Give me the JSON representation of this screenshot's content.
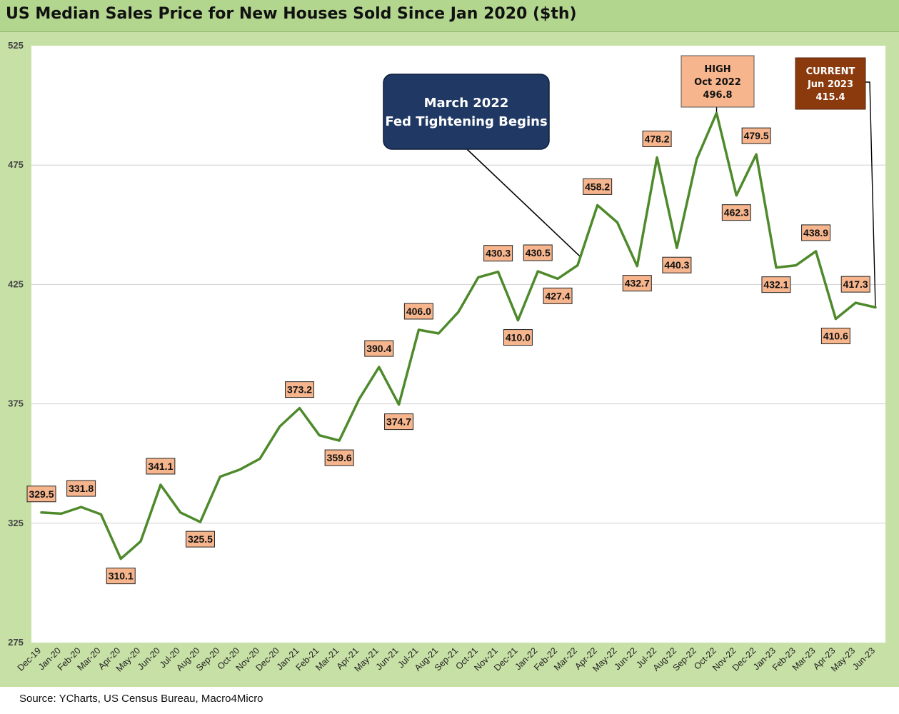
{
  "header": {
    "title": "US Median Sales Price for New Houses Sold Since Jan 2020 ($th)"
  },
  "footer": {
    "source": "Source: YCharts, US Census Bureau, Macro4Micro"
  },
  "colors": {
    "line": "#4e8a2b",
    "label_fill": "#f6b58d",
    "frame": "#c7e0a6",
    "callout_navy": "#1f3864",
    "callout_current": "#8b3a0e"
  },
  "chart_data": {
    "type": "line",
    "title": "US Median Sales Price for New Houses Sold Since Jan 2020 ($th)",
    "xlabel": "",
    "ylabel": "",
    "ylim": [
      275,
      525
    ],
    "yticks": [
      275,
      325,
      375,
      425,
      475,
      525
    ],
    "grid": true,
    "categories": [
      "Dec-19",
      "Jan-20",
      "Feb-20",
      "Mar-20",
      "Apr-20",
      "May-20",
      "Jun-20",
      "Jul-20",
      "Aug-20",
      "Sep-20",
      "Oct-20",
      "Nov-20",
      "Dec-20",
      "Jan-21",
      "Feb-21",
      "Mar-21",
      "Apr-21",
      "May-21",
      "Jun-21",
      "Jul-21",
      "Aug-21",
      "Sep-21",
      "Oct-21",
      "Nov-21",
      "Dec-21",
      "Jan-22",
      "Feb-22",
      "Mar-22",
      "Apr-22",
      "May-22",
      "Jun-22",
      "Jul-22",
      "Aug-22",
      "Sep-22",
      "Oct-22",
      "Nov-22",
      "Dec-22",
      "Jan-23",
      "Feb-23",
      "Mar-23",
      "Apr-23",
      "May-23",
      "Jun-23"
    ],
    "series": [
      {
        "values": [
          329.5,
          329.0,
          331.8,
          328.7,
          310.1,
          317.4,
          341.1,
          329.5,
          325.5,
          344.5,
          347.5,
          352.0,
          365.5,
          373.2,
          361.8,
          359.6,
          377.0,
          390.4,
          374.7,
          406.0,
          404.5,
          413.5,
          428.0,
          430.3,
          410.0,
          430.5,
          427.4,
          433.0,
          458.2,
          451.0,
          432.7,
          478.2,
          440.3,
          477.5,
          496.8,
          462.3,
          479.5,
          432.1,
          433.0,
          438.9,
          410.6,
          417.3,
          415.4
        ]
      }
    ],
    "data_labels": [
      {
        "index": 0,
        "text": "329.5",
        "pos": "above"
      },
      {
        "index": 2,
        "text": "331.8",
        "pos": "above"
      },
      {
        "index": 4,
        "text": "310.1",
        "pos": "below"
      },
      {
        "index": 6,
        "text": "341.1",
        "pos": "above"
      },
      {
        "index": 8,
        "text": "325.5",
        "pos": "below"
      },
      {
        "index": 13,
        "text": "373.2",
        "pos": "above"
      },
      {
        "index": 15,
        "text": "359.6",
        "pos": "below"
      },
      {
        "index": 17,
        "text": "390.4",
        "pos": "above"
      },
      {
        "index": 18,
        "text": "374.7",
        "pos": "below"
      },
      {
        "index": 19,
        "text": "406.0",
        "pos": "above"
      },
      {
        "index": 23,
        "text": "430.3",
        "pos": "above"
      },
      {
        "index": 24,
        "text": "410.0",
        "pos": "below"
      },
      {
        "index": 25,
        "text": "430.5",
        "pos": "above"
      },
      {
        "index": 26,
        "text": "427.4",
        "pos": "below"
      },
      {
        "index": 28,
        "text": "458.2",
        "pos": "above"
      },
      {
        "index": 30,
        "text": "432.7",
        "pos": "below"
      },
      {
        "index": 31,
        "text": "478.2",
        "pos": "above"
      },
      {
        "index": 32,
        "text": "440.3",
        "pos": "below"
      },
      {
        "index": 35,
        "text": "462.3",
        "pos": "below"
      },
      {
        "index": 36,
        "text": "479.5",
        "pos": "above"
      },
      {
        "index": 37,
        "text": "432.1",
        "pos": "below"
      },
      {
        "index": 39,
        "text": "438.9",
        "pos": "above"
      },
      {
        "index": 40,
        "text": "410.6",
        "pos": "below"
      },
      {
        "index": 41,
        "text": "417.3",
        "pos": "above"
      }
    ],
    "annotations": [
      {
        "id": "fed",
        "lines": [
          "March 2022",
          "Fed Tightening Begins"
        ],
        "points_to_index": 27
      },
      {
        "id": "high",
        "lines": [
          "HIGH",
          "Oct 2022",
          "496.8"
        ],
        "points_to_index": 34
      },
      {
        "id": "current",
        "lines": [
          "CURRENT",
          "Jun 2023",
          "415.4"
        ],
        "points_to_index": 42
      }
    ]
  }
}
